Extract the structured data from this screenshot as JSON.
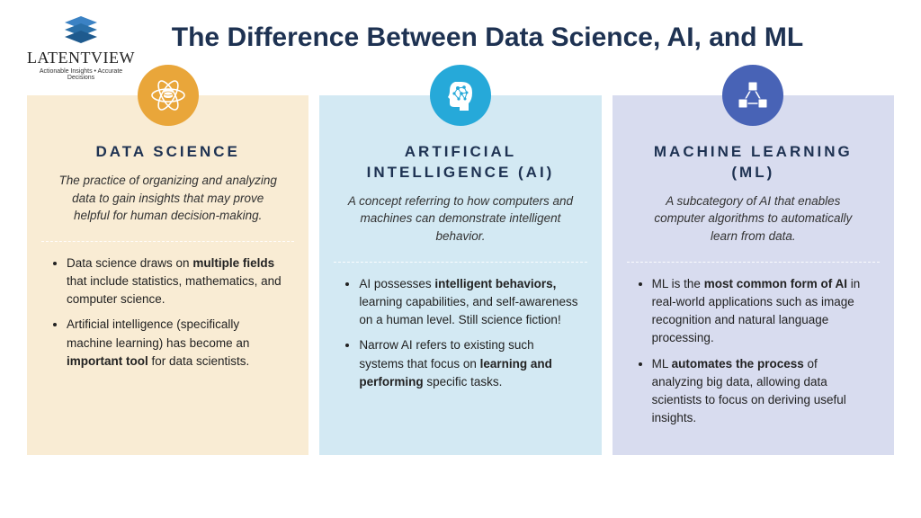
{
  "logo": {
    "name": "LatentView",
    "tagline": "Actionable Insights • Accurate Decisions",
    "icon_color_top": "#3b82c4",
    "icon_color_bottom": "#1e5a8e"
  },
  "title": "The Difference Between Data Science, AI, and ML",
  "title_color": "#1e3252",
  "cards": [
    {
      "bg": "#f9ecd4",
      "medallion_bg": "#e9a63a",
      "icon": "atom-db",
      "heading": "DATA SCIENCE",
      "sub": "The practice of organizing and analyzing data to gain insights that may prove helpful for human decision-making.",
      "bullets": [
        "Data science draws on <b>multiple fields</b> that include statistics, mathematics, and computer science.",
        "Artificial intelligence (specifically machine learning) has become an <b>important tool</b> for data scientists."
      ]
    },
    {
      "bg": "#d3e9f3",
      "medallion_bg": "#26a9d9",
      "icon": "ai-head",
      "heading": "ARTIFICIAL INTELLIGENCE (AI)",
      "sub": "A concept referring to how computers and machines can demonstrate intelligent behavior.",
      "bullets": [
        "AI possesses <b>intelligent behaviors,</b> learning capabilities, and self-awareness on a human level. Still science fiction!",
        "Narrow AI refers to existing such systems that focus on <b>learning and performing</b> specific tasks."
      ]
    },
    {
      "bg": "#d8dcef",
      "medallion_bg": "#4863b6",
      "icon": "network",
      "heading": "MACHINE LEARNING (ML)",
      "sub": "A subcategory of AI that enables computer algorithms to automatically learn from data.",
      "bullets": [
        "ML is the <b>most common form of AI</b> in real-world applications such as image recognition and natural language processing.",
        "ML <b>automates the process</b> of analyzing big data, allowing data scientists to focus on deriving useful insights."
      ]
    }
  ]
}
